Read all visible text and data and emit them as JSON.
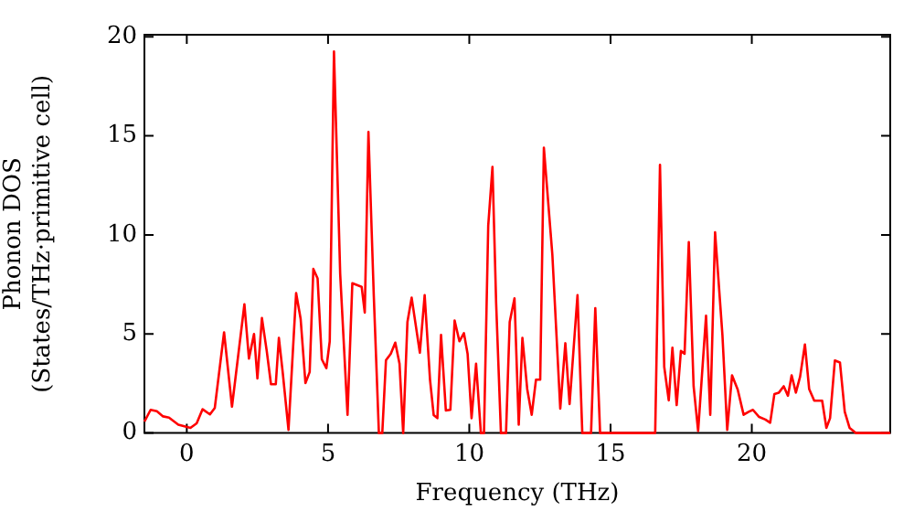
{
  "chart_data": {
    "type": "line",
    "xlabel": "Frequency (THz)",
    "ylabel": "Phonon DOS\n(States/THz·primitive cell)",
    "xlim": [
      -1.5,
      24.9
    ],
    "ylim": [
      0,
      20.1
    ],
    "xticks": [
      0,
      5,
      10,
      15,
      20
    ],
    "yticks": [
      0,
      5,
      10,
      15,
      20
    ],
    "grid": false,
    "legend": false,
    "marker": "none",
    "line_style": "solid",
    "series": [
      {
        "color": "#ff0000",
        "x": [
          -1.5,
          -1.28,
          -1.06,
          -0.84,
          -0.63,
          -0.3,
          0.13,
          0.35,
          0.56,
          0.82,
          0.99,
          1.32,
          1.6,
          2.04,
          2.2,
          2.38,
          2.5,
          2.66,
          2.83,
          2.98,
          3.15,
          3.26,
          3.4,
          3.6,
          3.87,
          4.03,
          4.2,
          4.35,
          4.48,
          4.63,
          4.78,
          4.94,
          5.06,
          5.21,
          5.43,
          5.69,
          5.86,
          6.19,
          6.3,
          6.43,
          6.62,
          6.8,
          6.92,
          7.05,
          7.22,
          7.38,
          7.53,
          7.66,
          7.81,
          7.96,
          8.25,
          8.42,
          8.61,
          8.74,
          8.87,
          9.0,
          9.17,
          9.33,
          9.48,
          9.65,
          9.81,
          9.94,
          10.08,
          10.24,
          10.41,
          10.52,
          10.67,
          10.82,
          10.95,
          11.12,
          11.3,
          11.43,
          11.6,
          11.75,
          11.88,
          12.05,
          12.21,
          12.36,
          12.51,
          12.64,
          12.94,
          13.22,
          13.4,
          13.55,
          13.83,
          14.0,
          14.31,
          14.46,
          14.63,
          16.58,
          16.75,
          16.9,
          17.06,
          17.19,
          17.34,
          17.49,
          17.62,
          17.77,
          17.94,
          18.1,
          18.38,
          18.53,
          18.7,
          18.96,
          19.13,
          19.3,
          19.5,
          19.71,
          19.89,
          20.04,
          20.26,
          20.48,
          20.65,
          20.8,
          20.96,
          21.13,
          21.28,
          21.41,
          21.56,
          21.71,
          21.88,
          22.03,
          22.21,
          22.49,
          22.64,
          22.77,
          22.94,
          23.12,
          23.29,
          23.46,
          23.68,
          24.9
        ],
        "values": [
          0.58,
          1.17,
          1.1,
          0.84,
          0.78,
          0.42,
          0.26,
          0.49,
          1.2,
          0.94,
          1.26,
          5.08,
          1.33,
          6.5,
          3.76,
          5.0,
          2.75,
          5.8,
          4.14,
          2.46,
          2.46,
          4.8,
          3.0,
          0.16,
          7.06,
          5.76,
          2.52,
          3.08,
          8.28,
          7.8,
          3.72,
          3.27,
          4.63,
          19.25,
          8.03,
          0.92,
          7.56,
          7.38,
          6.08,
          15.2,
          6.9,
          0,
          0,
          3.67,
          4.0,
          4.56,
          3.5,
          0,
          5.6,
          6.83,
          4.05,
          6.96,
          2.69,
          0.9,
          0.75,
          4.95,
          1.14,
          1.17,
          5.68,
          4.63,
          5.04,
          4.0,
          0.75,
          3.5,
          0,
          0,
          10.46,
          13.43,
          6.57,
          0,
          0,
          5.6,
          6.8,
          0.42,
          4.8,
          2.22,
          0.92,
          2.69,
          2.69,
          14.4,
          9.0,
          1.23,
          4.53,
          1.46,
          6.96,
          0,
          0,
          6.3,
          0,
          0,
          13.53,
          3.34,
          1.65,
          4.3,
          1.41,
          4.14,
          4.0,
          9.64,
          2.36,
          0.1,
          5.92,
          0.92,
          10.13,
          4.95,
          0.16,
          2.91,
          2.2,
          0.92,
          1.07,
          1.17,
          0.81,
          0.68,
          0.52,
          1.97,
          2.04,
          2.36,
          1.88,
          2.91,
          2.04,
          2.85,
          4.47,
          2.22,
          1.63,
          1.63,
          0.26,
          0.75,
          3.66,
          3.56,
          1.07,
          0.26,
          0,
          0
        ]
      }
    ]
  }
}
